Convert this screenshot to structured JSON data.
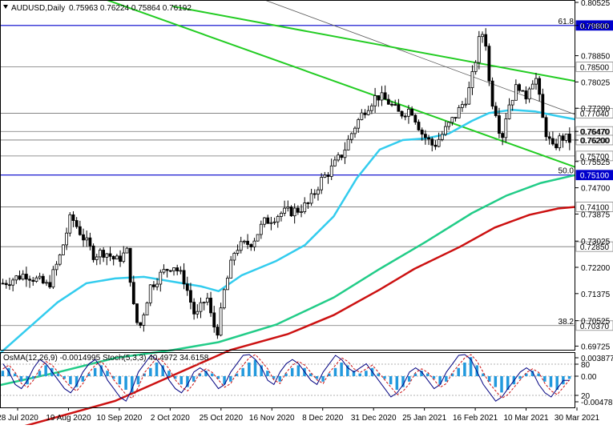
{
  "header": {
    "symbol": "AUDUSD,Daily",
    "ohlc": "0.75963 0.76224 0.75864 0.76192"
  },
  "chart_data": {
    "type": "candlestick",
    "symbol": "AUDUSD",
    "timeframe": "Daily",
    "ylim": [
      0.6961,
      0.806
    ],
    "price_ticks": [
      "0.80525",
      "0.79800",
      "0.78850",
      "0.78025",
      "0.77200",
      "0.76470",
      "0.76200",
      "0.75525",
      "0.74700",
      "0.73875",
      "0.73025",
      "0.72200",
      "0.71375",
      "0.70525",
      "0.69725"
    ],
    "date_ticks": [
      "28 Jul 2020",
      "19 Aug 2020",
      "10 Sep 2020",
      "2 Oct 2020",
      "25 Oct 2020",
      "16 Nov 2020",
      "8 Dec 2020",
      "31 Dec 2020",
      "25 Jan 2021",
      "16 Feb 2021",
      "10 Mar 2021",
      "30 Mar 2021"
    ],
    "horizontal_levels": [
      {
        "price": 0.798,
        "label": "0.79800",
        "color": "#0000cc",
        "fib": "61.8"
      },
      {
        "price": 0.785,
        "label": "0.78500",
        "color": "#000000"
      },
      {
        "price": 0.7704,
        "label": "0.77040",
        "color": "#000000"
      },
      {
        "price": 0.7647,
        "label": "0.76470",
        "color": "#000000"
      },
      {
        "price": 0.762,
        "label": "0.76200",
        "color": "#000000"
      },
      {
        "price": 0.757,
        "label": "0.75700",
        "color": "#000000"
      },
      {
        "price": 0.751,
        "label": "0.75100",
        "color": "#0000cc",
        "fib": "50.0"
      },
      {
        "price": 0.741,
        "label": "0.74100",
        "color": "#000000"
      },
      {
        "price": 0.7285,
        "label": "0.72850",
        "color": "#000000"
      },
      {
        "price": 0.7037,
        "label": "0.70370",
        "color": "#000000",
        "fib": "38.2"
      }
    ],
    "trend_channel": {
      "color": "#22cc22",
      "upper": [
        [
          0.3,
          0.804
        ],
        [
          1.0,
          0.7805
        ]
      ],
      "lower": [
        [
          0.0,
          0.818
        ],
        [
          1.0,
          0.7535
        ]
      ]
    },
    "gray_trendline": {
      "color": "#555555",
      "points": [
        [
          0.46,
          0.806
        ],
        [
          1.0,
          0.77
        ]
      ]
    },
    "moving_averages": [
      {
        "color": "#33ccee",
        "points": [
          [
            0.0,
            0.695
          ],
          [
            0.05,
            0.703
          ],
          [
            0.1,
            0.711
          ],
          [
            0.15,
            0.717
          ],
          [
            0.2,
            0.7185
          ],
          [
            0.25,
            0.719
          ],
          [
            0.3,
            0.7175
          ],
          [
            0.35,
            0.716
          ],
          [
            0.38,
            0.7145
          ],
          [
            0.42,
            0.7195
          ],
          [
            0.48,
            0.724
          ],
          [
            0.53,
            0.729
          ],
          [
            0.58,
            0.738
          ],
          [
            0.62,
            0.75
          ],
          [
            0.66,
            0.759
          ],
          [
            0.7,
            0.762
          ],
          [
            0.74,
            0.7625
          ],
          [
            0.78,
            0.764
          ],
          [
            0.82,
            0.768
          ],
          [
            0.85,
            0.7705
          ],
          [
            0.89,
            0.7715
          ],
          [
            0.93,
            0.771
          ],
          [
            0.97,
            0.7695
          ],
          [
            1.0,
            0.7685
          ]
        ]
      },
      {
        "color": "#22cc88",
        "points": [
          [
            0.0,
            0.685
          ],
          [
            0.1,
            0.689
          ],
          [
            0.2,
            0.6935
          ],
          [
            0.3,
            0.696
          ],
          [
            0.38,
            0.6985
          ],
          [
            0.48,
            0.704
          ],
          [
            0.58,
            0.7125
          ],
          [
            0.66,
            0.7215
          ],
          [
            0.74,
            0.73
          ],
          [
            0.82,
            0.739
          ],
          [
            0.88,
            0.7445
          ],
          [
            0.94,
            0.7485
          ],
          [
            1.0,
            0.751
          ]
        ]
      },
      {
        "color": "#cc1111",
        "points": [
          [
            0.0,
            0.67
          ],
          [
            0.2,
            0.68
          ],
          [
            0.4,
            0.696
          ],
          [
            0.5,
            0.701
          ],
          [
            0.58,
            0.707
          ],
          [
            0.66,
            0.715
          ],
          [
            0.72,
            0.7215
          ],
          [
            0.8,
            0.7285
          ],
          [
            0.86,
            0.7345
          ],
          [
            0.92,
            0.7385
          ],
          [
            0.97,
            0.7405
          ],
          [
            1.0,
            0.741
          ]
        ]
      }
    ],
    "candle_path": [
      [
        0.0,
        0.717
      ],
      [
        0.04,
        0.72
      ],
      [
        0.08,
        0.716
      ],
      [
        0.1,
        0.725
      ],
      [
        0.12,
        0.738
      ],
      [
        0.14,
        0.732
      ],
      [
        0.16,
        0.726
      ],
      [
        0.18,
        0.727
      ],
      [
        0.2,
        0.724
      ],
      [
        0.22,
        0.727
      ],
      [
        0.23,
        0.71
      ],
      [
        0.24,
        0.702
      ],
      [
        0.26,
        0.716
      ],
      [
        0.28,
        0.72
      ],
      [
        0.3,
        0.723
      ],
      [
        0.32,
        0.718
      ],
      [
        0.34,
        0.706
      ],
      [
        0.36,
        0.713
      ],
      [
        0.37,
        0.704
      ],
      [
        0.38,
        0.702
      ],
      [
        0.39,
        0.714
      ],
      [
        0.41,
        0.728
      ],
      [
        0.44,
        0.73
      ],
      [
        0.46,
        0.736
      ],
      [
        0.49,
        0.739
      ],
      [
        0.52,
        0.74
      ],
      [
        0.54,
        0.742
      ],
      [
        0.56,
        0.749
      ],
      [
        0.58,
        0.753
      ],
      [
        0.6,
        0.758
      ],
      [
        0.62,
        0.766
      ],
      [
        0.64,
        0.772
      ],
      [
        0.66,
        0.776
      ],
      [
        0.68,
        0.774
      ],
      [
        0.7,
        0.77
      ],
      [
        0.72,
        0.772
      ],
      [
        0.74,
        0.764
      ],
      [
        0.76,
        0.76
      ],
      [
        0.78,
        0.765
      ],
      [
        0.8,
        0.77
      ],
      [
        0.82,
        0.776
      ],
      [
        0.83,
        0.783
      ],
      [
        0.84,
        0.793
      ],
      [
        0.85,
        0.797
      ],
      [
        0.86,
        0.776
      ],
      [
        0.87,
        0.771
      ],
      [
        0.88,
        0.762
      ],
      [
        0.89,
        0.772
      ],
      [
        0.91,
        0.78
      ],
      [
        0.92,
        0.774
      ],
      [
        0.93,
        0.78
      ],
      [
        0.94,
        0.782
      ],
      [
        0.955,
        0.766
      ],
      [
        0.97,
        0.759
      ],
      [
        0.985,
        0.763
      ],
      [
        1.0,
        0.7619
      ]
    ],
    "oscillator": {
      "label": "OsMA(12,26,9) -0.0014995 Stoch(5,3,3) 40.4972 34.6158",
      "ticks": [
        "0.0038774",
        "80",
        "0.00",
        "20",
        "-0.0047828"
      ],
      "hist_color": "#2299dd",
      "stoch_main_color": "#000080",
      "stoch_signal_color": "#cc1111",
      "hist": [
        2,
        3,
        1,
        -2,
        -3,
        -1,
        2,
        4,
        3,
        1,
        -1,
        -3,
        -4,
        -2,
        1,
        3,
        4,
        2,
        -1,
        -3,
        -5,
        -6,
        -3,
        1,
        3,
        5,
        4,
        2,
        -1,
        -3,
        -4,
        -2,
        1,
        2,
        1,
        -1,
        -3,
        -2,
        1,
        3,
        5,
        6,
        4,
        2,
        -1,
        -2,
        1,
        3,
        4,
        3,
        1,
        -1,
        -2,
        1,
        3,
        5,
        4,
        2,
        1,
        2,
        3,
        1,
        -1,
        -3,
        -5,
        -4,
        -2,
        1,
        2,
        1,
        -1,
        -3,
        -2,
        1,
        3,
        5,
        7,
        4,
        1,
        -2,
        -4,
        -6,
        -5,
        -3,
        -1,
        1,
        2,
        1,
        -2,
        -4,
        -5,
        -3,
        -1
      ]
    }
  }
}
